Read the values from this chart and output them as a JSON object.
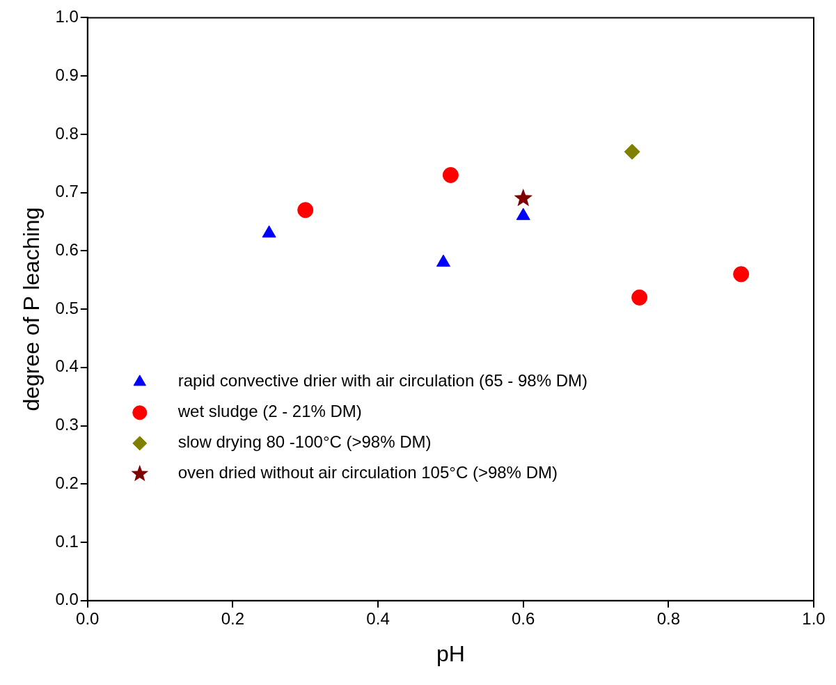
{
  "chart_data": {
    "type": "scatter",
    "xlabel": "pH",
    "ylabel": "degree of P leaching",
    "xlim": [
      0,
      1
    ],
    "ylim": [
      0,
      1
    ],
    "xticks": [
      {
        "value": 0,
        "label": "0.0"
      },
      0.2,
      0.4,
      0.6,
      0.8,
      {
        "value": 1,
        "label": "1.0"
      }
    ],
    "yticks": [
      {
        "value": 0,
        "label": "0.0"
      },
      0.1,
      0.2,
      0.3,
      0.4,
      0.5,
      0.6,
      0.7,
      0.8,
      0.9,
      {
        "value": 1,
        "label": "1.0"
      }
    ],
    "legend": "bottom left",
    "grid": false,
    "series": [
      {
        "name": "rapid convective drier with air circulation (65 - 98% DM)",
        "color": "#0000ff",
        "marker": "triangle",
        "x": [
          0.25,
          0.49,
          0.6
        ],
        "values": [
          0.63,
          0.58,
          0.66
        ]
      },
      {
        "name": "wet sludge (2 - 21% DM)",
        "color": "#ff0000",
        "marker": "circle",
        "x": [
          0.3,
          0.5,
          0.76,
          0.9
        ],
        "values": [
          0.67,
          0.73,
          0.52,
          0.56
        ]
      },
      {
        "name": "slow drying 80 -100°C (>98% DM)",
        "color": "#808000",
        "marker": "diamond",
        "x": [
          0.75
        ],
        "values": [
          0.77
        ]
      },
      {
        "name": "oven dried without air circulation 105°C (>98% DM)",
        "color": "#800000",
        "marker": "star",
        "x": [
          0.6
        ],
        "values": [
          0.69
        ]
      }
    ]
  }
}
